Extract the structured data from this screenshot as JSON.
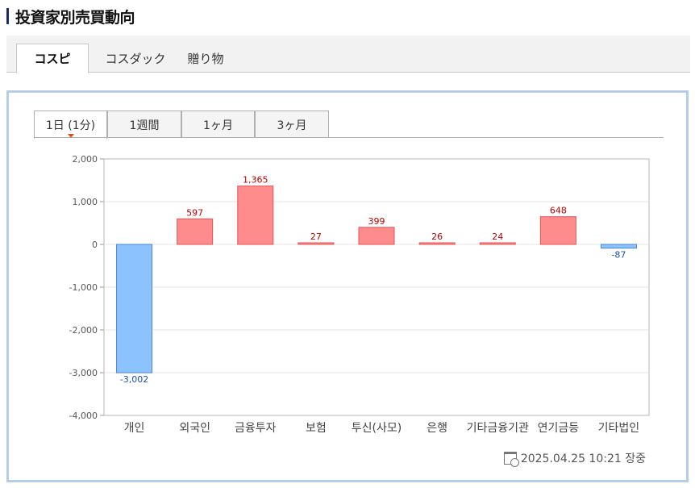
{
  "page": {
    "title": "投資家別売買動向"
  },
  "market_tabs": [
    {
      "label": "コスピ",
      "active": true
    },
    {
      "label": "コスダック",
      "active": false
    },
    {
      "label": "贈り物",
      "active": false
    }
  ],
  "period_tabs": [
    {
      "label": "1日 (1分)",
      "active": true
    },
    {
      "label": "1週間",
      "active": false
    },
    {
      "label": "1ヶ月",
      "active": false
    },
    {
      "label": "3ヶ月",
      "active": false
    }
  ],
  "footer": {
    "timestamp": "2025.04.25 10:21 장중"
  },
  "colors": {
    "positive_fill": "#ff8c8c",
    "positive_stroke": "#e05555",
    "positive_label": "#c00000",
    "negative_fill": "#8cc3ff",
    "negative_stroke": "#4a86d8",
    "negative_label": "#1a4fb0"
  },
  "chart_data": {
    "type": "bar",
    "categories": [
      "개인",
      "외국인",
      "금융투자",
      "보험",
      "투신(사모)",
      "은행",
      "기타금융기관",
      "연기금등",
      "기타법인"
    ],
    "values": [
      -3002,
      597,
      1365,
      27,
      399,
      26,
      24,
      648,
      -87
    ],
    "value_labels": [
      "-3,002",
      "597",
      "1,365",
      "27",
      "399",
      "26",
      "24",
      "648",
      "-87"
    ],
    "ylim": [
      -4000,
      2000
    ],
    "yticks": [
      2000,
      1000,
      0,
      -1000,
      -2000,
      -3000,
      -4000
    ],
    "ytick_labels": [
      "2,000",
      "1,000",
      "0",
      "-1,000",
      "-2,000",
      "-3,000",
      "-4,000"
    ],
    "grid": true,
    "title": "",
    "xlabel": "",
    "ylabel": ""
  }
}
